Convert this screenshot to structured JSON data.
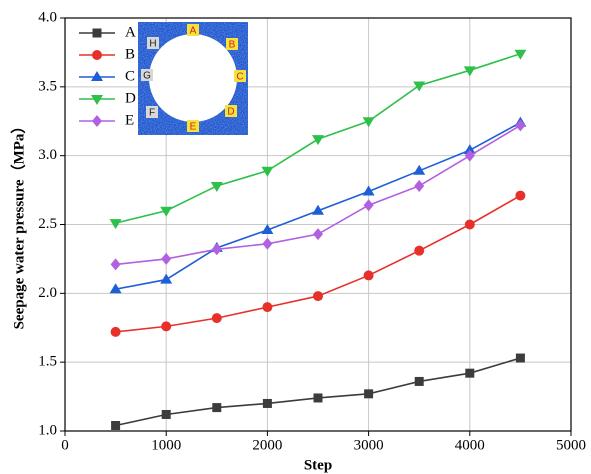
{
  "chart_data": {
    "type": "line",
    "xlabel": "Step",
    "ylabel": "Seepage water pressure（MPa）",
    "x": [
      500,
      1000,
      1500,
      2000,
      2500,
      3000,
      3500,
      4000,
      4500
    ],
    "series": [
      {
        "name": "A",
        "color": "#3c3c3c",
        "marker": "square",
        "values": [
          1.04,
          1.12,
          1.17,
          1.2,
          1.24,
          1.27,
          1.36,
          1.42,
          1.53
        ]
      },
      {
        "name": "B",
        "color": "#e8302a",
        "marker": "circle",
        "values": [
          1.72,
          1.76,
          1.82,
          1.9,
          1.98,
          2.13,
          2.31,
          2.5,
          2.71
        ]
      },
      {
        "name": "C",
        "color": "#1f5fd6",
        "marker": "triangle-up",
        "values": [
          2.03,
          2.1,
          2.33,
          2.46,
          2.6,
          2.74,
          2.89,
          3.04,
          3.24
        ]
      },
      {
        "name": "D",
        "color": "#2ec04a",
        "marker": "triangle-down",
        "values": [
          2.51,
          2.6,
          2.78,
          2.89,
          3.12,
          3.25,
          3.51,
          3.62,
          3.74
        ]
      },
      {
        "name": "E",
        "color": "#b060e0",
        "marker": "diamond",
        "values": [
          2.21,
          2.25,
          2.32,
          2.36,
          2.43,
          2.64,
          2.78,
          3.0,
          3.22
        ]
      }
    ],
    "xlim": [
      0,
      5000
    ],
    "xticks": [
      0,
      1000,
      2000,
      3000,
      4000,
      5000
    ],
    "ylim": [
      1.0,
      4.0
    ],
    "yticks": [
      {
        "value": 1.0,
        "label": "1.0"
      },
      1.5,
      {
        "value": 2.0,
        "label": "2.0"
      },
      2.5,
      {
        "value": 3.0,
        "label": "3.0"
      },
      3.5,
      {
        "value": 4.0,
        "label": "4.0"
      }
    ],
    "grid": true,
    "legend": "top-left",
    "inset_labels": [
      "A",
      "B",
      "C",
      "D",
      "E",
      "F",
      "G",
      "H"
    ]
  }
}
